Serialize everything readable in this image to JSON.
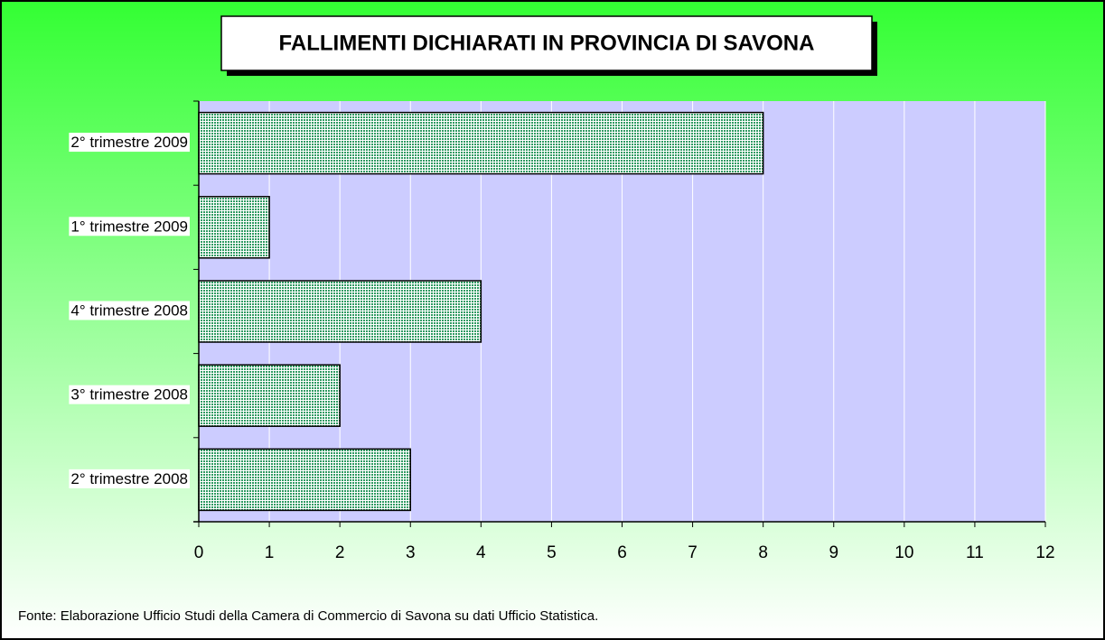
{
  "chart_data": {
    "type": "bar",
    "orientation": "horizontal",
    "title": "FALLIMENTI DICHIARATI IN PROVINCIA DI SAVONA",
    "categories": [
      "2° trimestre 2008",
      "3° trimestre 2008",
      "4° trimestre 2008",
      "1° trimestre 2009",
      "2° trimestre 2009"
    ],
    "values": [
      3,
      2,
      4,
      1,
      8
    ],
    "color": "#2f9a62",
    "xlim": [
      0,
      12
    ],
    "xticks": [
      0,
      1,
      2,
      3,
      4,
      5,
      6,
      7,
      8,
      9,
      10,
      11,
      12
    ],
    "grid": true,
    "source": "Fonte: Elaborazione Ufficio Studi della Camera di Commercio di Savona su dati Ufficio Statistica."
  }
}
